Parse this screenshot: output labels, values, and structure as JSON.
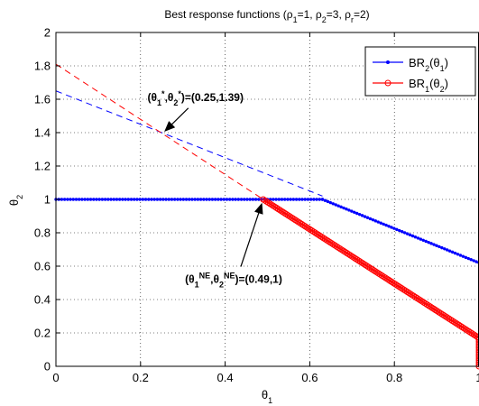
{
  "chart_data": {
    "type": "line",
    "title": "Best response functions (ρ1=1, ρ2=3, ρr=2)",
    "title_parts": [
      {
        "t": "Best response functions (ρ",
        "sub": false
      },
      {
        "t": "1",
        "sub": true
      },
      {
        "t": "=1, ρ",
        "sub": false
      },
      {
        "t": "2",
        "sub": true
      },
      {
        "t": "=3, ρ",
        "sub": false
      },
      {
        "t": "r",
        "sub": true
      },
      {
        "t": "=2)",
        "sub": false
      }
    ],
    "xlabel": "θ1",
    "xlabel_parts": [
      {
        "t": "θ",
        "sub": false
      },
      {
        "t": "1",
        "sub": true
      }
    ],
    "ylabel": "θ2",
    "ylabel_parts": [
      {
        "t": "θ",
        "sub": false
      },
      {
        "t": "2",
        "sub": true
      }
    ],
    "xlim": [
      0,
      1
    ],
    "ylim": [
      0,
      2
    ],
    "xticks": [
      "0",
      "0.2",
      "0.4",
      "0.6",
      "0.8",
      "1"
    ],
    "yticks": [
      "0",
      "0.2",
      "0.4",
      "0.6",
      "0.8",
      "1",
      "1.2",
      "1.4",
      "1.6",
      "1.8",
      "2"
    ],
    "grid": true,
    "legend_position": "top-right",
    "series": [
      {
        "name": "BR2(θ1)",
        "name_parts": [
          {
            "t": "BR",
            "sub": false
          },
          {
            "t": "2",
            "sub": true
          },
          {
            "t": "(θ",
            "sub": false
          },
          {
            "t": "1",
            "sub": true
          },
          {
            "t": ")",
            "sub": false
          }
        ],
        "color": "#0000ff",
        "marker": "dot",
        "style": "solid",
        "points": [
          [
            0,
            1.0
          ],
          [
            0.63,
            1.0
          ],
          [
            1.0,
            0.62
          ]
        ]
      },
      {
        "name": "BR1(θ2)",
        "name_parts": [
          {
            "t": "BR",
            "sub": false
          },
          {
            "t": "1",
            "sub": true
          },
          {
            "t": "(θ",
            "sub": false
          },
          {
            "t": "2",
            "sub": true
          },
          {
            "t": ")",
            "sub": false
          }
        ],
        "color": "#ff0000",
        "marker": "circle",
        "style": "solid",
        "points": [
          [
            0.49,
            1.0
          ],
          [
            1.0,
            0.17
          ],
          [
            1.0,
            0.0
          ]
        ]
      }
    ],
    "dashed_lines": [
      {
        "color": "#0000ff",
        "points": [
          [
            0,
            1.65
          ],
          [
            0.63,
            1.02
          ]
        ]
      },
      {
        "color": "#ff0000",
        "points": [
          [
            0,
            1.81
          ],
          [
            0.49,
            1.0
          ]
        ]
      }
    ],
    "annotations": [
      {
        "text": "(θ1*,θ2*)=(0.25,1.39)",
        "parts": [
          {
            "t": "(θ",
            "sub": false
          },
          {
            "t": "1",
            "sub": true
          },
          {
            "t": "*",
            "sup": true
          },
          {
            "t": ",θ",
            "sub": false
          },
          {
            "t": "2",
            "sub": true
          },
          {
            "t": "*",
            "sup": true
          },
          {
            "t": ")=(0.25,1.39)",
            "sub": false
          }
        ],
        "point": [
          0.25,
          1.39
        ],
        "label_at": [
          0.33,
          1.59
        ]
      },
      {
        "text": "(θ1NE,θ2NE)=(0.49,1)",
        "parts": [
          {
            "t": "(θ",
            "sub": false
          },
          {
            "t": "1",
            "sub": true
          },
          {
            "t": "NE",
            "sup": true
          },
          {
            "t": ",θ",
            "sub": false
          },
          {
            "t": "2",
            "sub": true
          },
          {
            "t": "NE",
            "sup": true
          },
          {
            "t": ")=(0.49,1)",
            "sub": false
          }
        ],
        "point": [
          0.49,
          1.0
        ],
        "label_at": [
          0.42,
          0.5
        ]
      }
    ]
  }
}
